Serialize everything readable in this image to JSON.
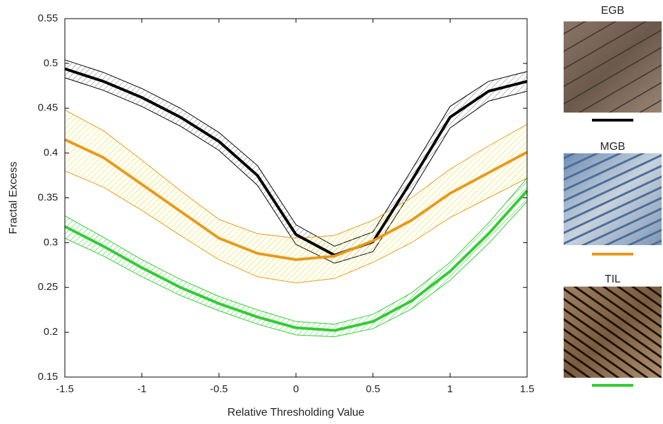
{
  "chart_data": {
    "type": "line",
    "xlabel": "Relative Thresholding Value",
    "ylabel": "Fractal Excess",
    "x": [
      -1.5,
      -1.25,
      -1,
      -0.75,
      -0.5,
      -0.25,
      0,
      0.25,
      0.5,
      0.75,
      1,
      1.25,
      1.5
    ],
    "xlim": [
      -1.5,
      1.5
    ],
    "xticks": [
      -1.5,
      -1,
      -0.5,
      0,
      0.5,
      1,
      1.5
    ],
    "ylim": [
      0.15,
      0.55
    ],
    "yticks": [
      0.15,
      0.2,
      0.25,
      0.3,
      0.35,
      0.4,
      0.45,
      0.5,
      0.55
    ],
    "grid": false,
    "series": [
      {
        "name": "EGB",
        "color": "#000000",
        "band_color": "#777777",
        "values": [
          0.494,
          0.48,
          0.462,
          0.44,
          0.413,
          0.375,
          0.309,
          0.286,
          0.301,
          0.369,
          0.44,
          0.469,
          0.48
        ],
        "upper": [
          0.504,
          0.49,
          0.472,
          0.45,
          0.423,
          0.386,
          0.32,
          0.296,
          0.312,
          0.381,
          0.452,
          0.48,
          0.491
        ],
        "lower": [
          0.484,
          0.47,
          0.452,
          0.43,
          0.403,
          0.364,
          0.298,
          0.277,
          0.29,
          0.357,
          0.428,
          0.458,
          0.469
        ]
      },
      {
        "name": "MGB",
        "color": "#e89a1c",
        "band_color": "#e8d800",
        "values": [
          0.415,
          0.395,
          0.365,
          0.335,
          0.305,
          0.288,
          0.281,
          0.285,
          0.302,
          0.325,
          0.355,
          0.378,
          0.401
        ],
        "upper": [
          0.448,
          0.425,
          0.392,
          0.358,
          0.326,
          0.31,
          0.305,
          0.308,
          0.325,
          0.35,
          0.382,
          0.408,
          0.432
        ],
        "lower": [
          0.38,
          0.362,
          0.336,
          0.308,
          0.281,
          0.262,
          0.255,
          0.26,
          0.278,
          0.3,
          0.328,
          0.35,
          0.372
        ]
      },
      {
        "name": "TIL",
        "color": "#33cc33",
        "band_color": "#33cc33",
        "values": [
          0.318,
          0.296,
          0.272,
          0.25,
          0.232,
          0.217,
          0.205,
          0.202,
          0.212,
          0.235,
          0.268,
          0.31,
          0.358
        ],
        "upper": [
          0.33,
          0.306,
          0.281,
          0.259,
          0.24,
          0.225,
          0.212,
          0.209,
          0.22,
          0.244,
          0.278,
          0.322,
          0.372
        ],
        "lower": [
          0.305,
          0.285,
          0.262,
          0.241,
          0.224,
          0.209,
          0.197,
          0.195,
          0.204,
          0.226,
          0.258,
          0.299,
          0.346
        ]
      }
    ]
  }
}
